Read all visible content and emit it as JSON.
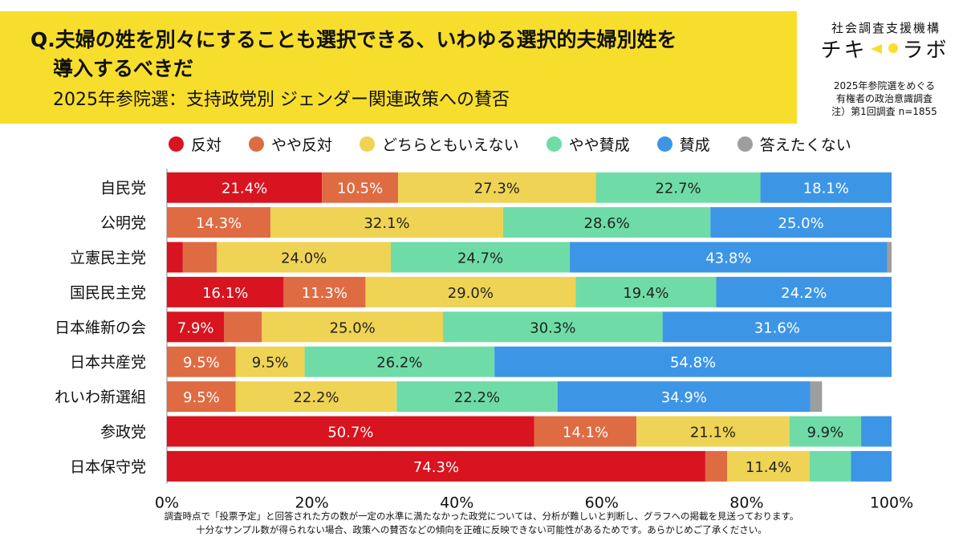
{
  "header": {
    "question_line1": "Q.夫婦の姓を別々にすることも選択できる、いわゆる選択的夫婦別姓を",
    "question_line2": "導入するべきだ",
    "subtitle": "2025年参院選：支持政党別 ジェンダー関連政策への賛否"
  },
  "brand": {
    "org": "社会調査支援機構",
    "logo_left": "チキ",
    "logo_right": "ラボ",
    "note1": "2025年参院選をめぐる",
    "note2": "有権者の政治意識調査",
    "note3": "注）第1回調査 n=1855"
  },
  "footnote": {
    "line1": "調査時点で「投票予定」と回答された方の数が一定の水準に満たなかった政党については、分析が難しいと判断し、グラフへの掲載を見送っております。",
    "line2": "十分なサンプル数が得られない場合、政策への賛否などの傾向を正確に反映できない可能性があるためです。あらかじめご了承ください。"
  },
  "chart_data": {
    "type": "bar",
    "orientation": "horizontal",
    "stacked": true,
    "unit": "%",
    "categories": [
      "自民党",
      "公明党",
      "立憲民主党",
      "国民民主党",
      "日本維新の会",
      "日本共産党",
      "れいわ新選組",
      "参政党",
      "日本保守党"
    ],
    "xlim": [
      0,
      100
    ],
    "xticks": [
      "0%",
      "20%",
      "40%",
      "60%",
      "80%",
      "100%"
    ],
    "legend_position": "top",
    "series": [
      {
        "name": "反対",
        "color": "#d7141f",
        "values": [
          21.4,
          0,
          2.2,
          16.1,
          7.9,
          0,
          0,
          50.7,
          74.3
        ],
        "labels": [
          "21.4%",
          "",
          "",
          "16.1%",
          "7.9%",
          "",
          "",
          "50.7%",
          "74.3%"
        ]
      },
      {
        "name": "やや反対",
        "color": "#df6b43",
        "values": [
          10.5,
          14.3,
          4.7,
          11.3,
          5.2,
          9.5,
          9.5,
          14.1,
          3.0
        ],
        "labels": [
          "10.5%",
          "14.3%",
          "",
          "11.3%",
          "",
          "9.5%",
          "9.5%",
          "14.1%",
          ""
        ]
      },
      {
        "name": "どちらともいえない",
        "color": "#efd354",
        "values": [
          27.3,
          32.1,
          24.0,
          29.0,
          25.0,
          9.5,
          22.2,
          21.1,
          11.4
        ],
        "labels": [
          "27.3%",
          "32.1%",
          "24.0%",
          "29.0%",
          "25.0%",
          "9.5%",
          "22.2%",
          "21.1%",
          "11.4%"
        ]
      },
      {
        "name": "やや賛成",
        "color": "#6fdca7",
        "values": [
          22.7,
          28.6,
          24.7,
          19.4,
          30.3,
          26.2,
          22.2,
          9.9,
          5.7
        ],
        "labels": [
          "22.7%",
          "28.6%",
          "24.7%",
          "19.4%",
          "30.3%",
          "26.2%",
          "22.2%",
          "9.9%",
          ""
        ]
      },
      {
        "name": "賛成",
        "color": "#3d95e6",
        "values": [
          18.1,
          25.0,
          43.8,
          24.2,
          31.6,
          54.8,
          34.9,
          4.2,
          5.6
        ],
        "labels": [
          "18.1%",
          "25.0%",
          "43.8%",
          "24.2%",
          "31.6%",
          "54.8%",
          "34.9%",
          "",
          ""
        ]
      },
      {
        "name": "答えたくない",
        "color": "#9e9e9e",
        "values": [
          0,
          0,
          0.6,
          0,
          0,
          0,
          1.6,
          0,
          0
        ],
        "labels": [
          "",
          "",
          "",
          "",
          "",
          "",
          "",
          "",
          ""
        ]
      }
    ]
  }
}
